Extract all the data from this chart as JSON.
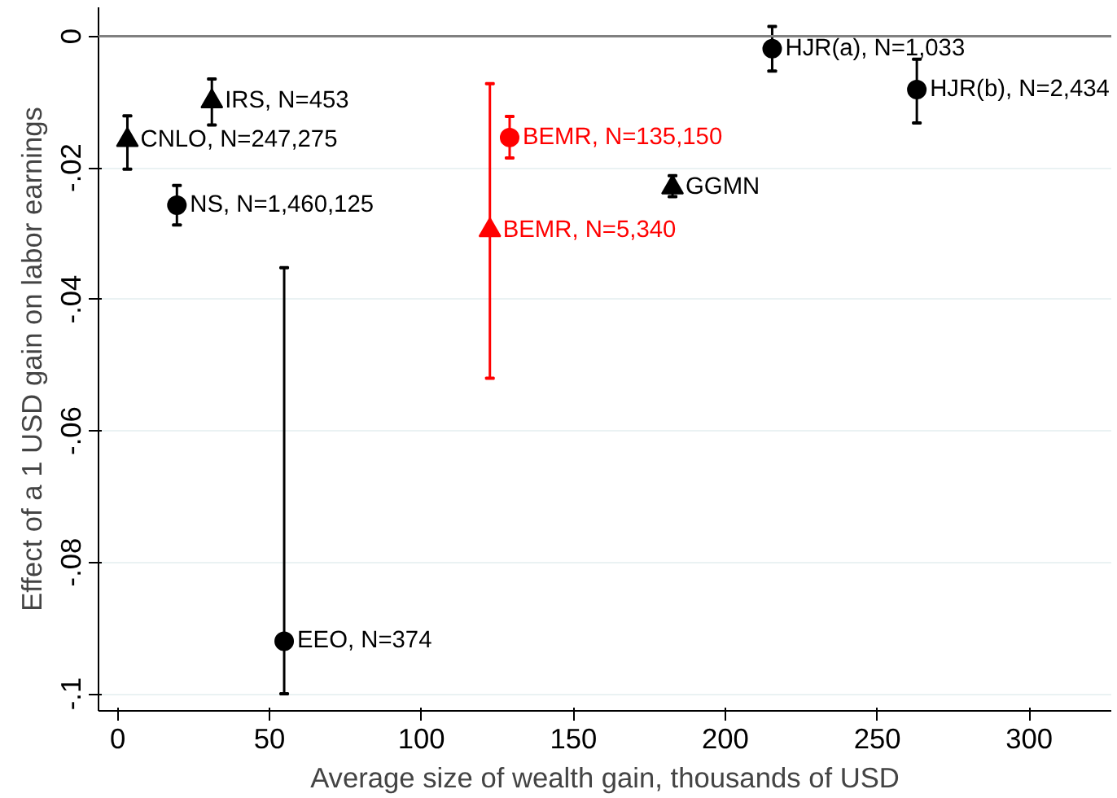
{
  "chart_data": {
    "type": "scatter",
    "xlabel": "Average size of wealth gain, thousands of USD",
    "ylabel": "Effect of a 1 USD gain on labor earnings",
    "xlim": [
      -6.3,
      327
    ],
    "ylim": [
      -0.1026,
      0.0044
    ],
    "xticks": [
      0,
      50,
      100,
      150,
      200,
      250,
      300
    ],
    "yticks": [
      {
        "value": 0,
        "label": "0"
      },
      {
        "value": -0.02,
        "label": "-.02"
      },
      {
        "value": -0.04,
        "label": "-.04"
      },
      {
        "value": -0.06,
        "label": "-.06"
      },
      {
        "value": -0.08,
        "label": "-.08"
      },
      {
        "value": -0.1,
        "label": "-.1"
      }
    ],
    "grid": "y",
    "ref_lines": [
      {
        "axis": "y",
        "value": 0,
        "color": "#808080"
      }
    ],
    "series": [
      {
        "color": "#000000",
        "marker": "circle",
        "x": [
          19.5,
          54.8,
          215.4,
          263
        ],
        "values": [
          -0.0257,
          -0.092,
          -0.0019,
          -0.0081
        ],
        "errors": [
          [
            -0.0287,
            -0.0227
          ],
          [
            -0.1,
            -0.0352
          ],
          [
            -0.0053,
            0.0015
          ],
          [
            -0.0132,
            -0.0035
          ]
        ]
      },
      {
        "color": "#000000",
        "marker": "triangle",
        "x": [
          3.2,
          31,
          182.6
        ],
        "values": [
          -0.0158,
          -0.0099,
          -0.023
        ],
        "errors": [
          [
            -0.0202,
            -0.0121
          ],
          [
            -0.0135,
            -0.0065
          ],
          [
            -0.0244,
            -0.0212
          ]
        ]
      },
      {
        "color": "#ff0000",
        "marker": "circle",
        "x": [
          129
        ],
        "values": [
          -0.0154
        ],
        "errors": [
          [
            -0.0185,
            -0.0122
          ]
        ]
      },
      {
        "color": "#ff0000",
        "marker": "triangle",
        "x": [
          122.5
        ],
        "values": [
          -0.0295
        ],
        "errors": [
          [
            -0.052,
            -0.0072
          ]
        ]
      }
    ],
    "annotations": [
      {
        "text": "NS, N=1,460,125",
        "x": 19.5,
        "y": -0.0257
      },
      {
        "text": "EEO, N=374",
        "x": 54.8,
        "y": -0.092
      },
      {
        "text": "HJR(a), N=1,033",
        "x": 215.4,
        "y": -0.0019
      },
      {
        "text": "HJR(b), N=2,434",
        "x": 263,
        "y": -0.0081
      },
      {
        "text": "CNLO, N=247,275",
        "x": 3.2,
        "y": -0.0158
      },
      {
        "text": "IRS, N=453",
        "x": 31,
        "y": -0.0099
      },
      {
        "text": "GGMN",
        "x": 182.6,
        "y": -0.023
      },
      {
        "text": "BEMR, N=135,150",
        "x": 129,
        "y": -0.0154
      },
      {
        "text": "BEMR, N=5,340",
        "x": 122.5,
        "y": -0.0295
      }
    ]
  }
}
